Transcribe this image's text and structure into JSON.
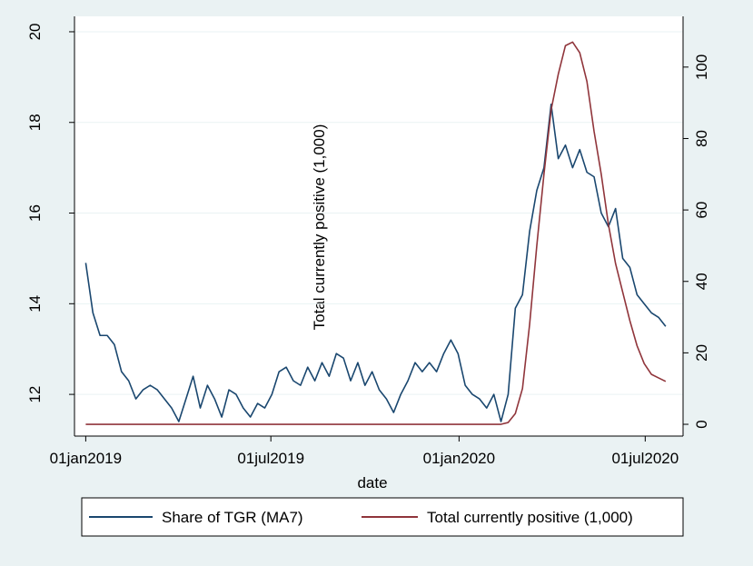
{
  "chart_data": {
    "type": "line",
    "x_label": "date",
    "y2_label": "Total currently positive (1,000)",
    "x": [
      21550,
      21557,
      21564,
      21571,
      21578,
      21585,
      21592,
      21599,
      21606,
      21613,
      21620,
      21627,
      21634,
      21641,
      21648,
      21655,
      21662,
      21669,
      21676,
      21683,
      21690,
      21697,
      21704,
      21711,
      21718,
      21725,
      21732,
      21739,
      21746,
      21753,
      21760,
      21767,
      21774,
      21781,
      21788,
      21795,
      21802,
      21809,
      21816,
      21823,
      21830,
      21837,
      21844,
      21851,
      21858,
      21865,
      21872,
      21879,
      21886,
      21893,
      21900,
      21907,
      21914,
      21921,
      21928,
      21935,
      21942,
      21949,
      21956,
      21963,
      21970,
      21977,
      21984,
      21991,
      21998,
      22005,
      22012,
      22019,
      22026,
      22033,
      22040,
      22047,
      22054,
      22061,
      22068,
      22075,
      22082,
      22089,
      22096,
      22103,
      22110,
      22117
    ],
    "series": [
      {
        "name": "Share of TGR (MA7)",
        "color": "#1a476f",
        "values": [
          14.9,
          13.8,
          13.3,
          13.3,
          13.1,
          12.5,
          12.3,
          11.9,
          12.1,
          12.2,
          12.1,
          11.9,
          11.7,
          11.4,
          11.9,
          12.4,
          11.7,
          12.2,
          11.9,
          11.5,
          12.1,
          12.0,
          11.7,
          11.5,
          11.8,
          11.7,
          12.0,
          12.5,
          12.6,
          12.3,
          12.2,
          12.6,
          12.3,
          12.7,
          12.4,
          12.9,
          12.8,
          12.3,
          12.7,
          12.2,
          12.5,
          12.1,
          11.9,
          11.6,
          12.0,
          12.3,
          12.7,
          12.5,
          12.7,
          12.5,
          12.9,
          13.2,
          12.9,
          12.2,
          12.0,
          11.9,
          11.7,
          12.0,
          11.4,
          12.0,
          13.9,
          14.2,
          15.6,
          16.5,
          17.0,
          18.4,
          17.2,
          17.5,
          17.0,
          17.4,
          16.9,
          16.8,
          16.0,
          15.7,
          16.1,
          15.0,
          14.8,
          14.2,
          14.0,
          13.8,
          13.7,
          13.5
        ]
      },
      {
        "name": "Total currently positive (1,000)",
        "color": "#90353b",
        "axis": "y2",
        "values": [
          0,
          0,
          0,
          0,
          0,
          0,
          0,
          0,
          0,
          0,
          0,
          0,
          0,
          0,
          0,
          0,
          0,
          0,
          0,
          0,
          0,
          0,
          0,
          0,
          0,
          0,
          0,
          0,
          0,
          0,
          0,
          0,
          0,
          0,
          0,
          0,
          0,
          0,
          0,
          0,
          0,
          0,
          0,
          0,
          0,
          0,
          0,
          0,
          0,
          0,
          0,
          0,
          0,
          0,
          0,
          0,
          0,
          0,
          0,
          0.5,
          3,
          10,
          28,
          50,
          70,
          88,
          98,
          106,
          107,
          104,
          96,
          82,
          70,
          56,
          45,
          37,
          29,
          22,
          17,
          14,
          13,
          12
        ]
      }
    ],
    "xlim": [
      21539,
      22134
    ],
    "xticks": [
      {
        "value": 21550,
        "label": "01jan2019"
      },
      {
        "value": 21731,
        "label": "01jul2019"
      },
      {
        "value": 21915,
        "label": "01jan2020"
      },
      {
        "value": 22097,
        "label": "01jul2020"
      }
    ],
    "ylim": [
      11.08,
      20.34
    ],
    "yticks": [
      12,
      14,
      16,
      18,
      20
    ],
    "y2lim": [
      -3.3,
      114.2
    ],
    "y2ticks": [
      0,
      20,
      40,
      60,
      80,
      100
    ],
    "grid": true
  }
}
